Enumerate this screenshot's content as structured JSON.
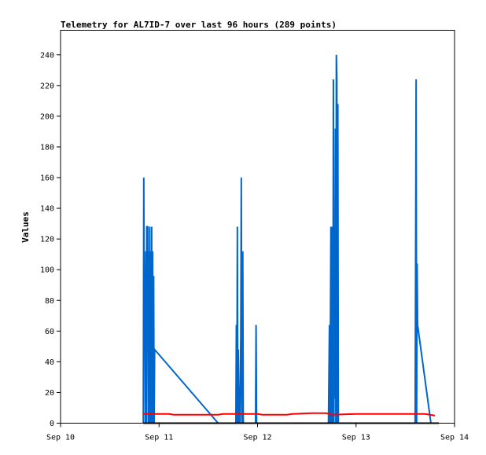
{
  "chart_data": {
    "type": "line",
    "title": "Telemetry for AL7ID-7 over last 96 hours (289 points)",
    "xlabel": "",
    "ylabel": "Values",
    "x_ticks": [
      "Sep 10",
      "Sep 11",
      "Sep 12",
      "Sep 13",
      "Sep 14"
    ],
    "x_range_days": [
      10,
      14
    ],
    "y_ticks": [
      0,
      20,
      40,
      60,
      80,
      100,
      120,
      140,
      160,
      180,
      200,
      220,
      240
    ],
    "ylim": [
      0,
      256
    ],
    "grid": false,
    "legend": "none",
    "series": [
      {
        "color": "#0066cc",
        "day_points": [
          [
            10.84,
            0
          ],
          [
            10.845,
            160
          ],
          [
            10.85,
            64
          ],
          [
            10.855,
            96
          ],
          [
            10.86,
            0
          ],
          [
            10.865,
            112
          ],
          [
            10.87,
            0
          ],
          [
            10.875,
            128
          ],
          [
            10.885,
            128
          ],
          [
            10.89,
            0
          ],
          [
            10.895,
            112
          ],
          [
            10.9,
            0
          ],
          [
            10.905,
            128
          ],
          [
            10.91,
            0
          ],
          [
            10.915,
            112
          ],
          [
            10.92,
            0
          ],
          [
            10.925,
            128
          ],
          [
            10.93,
            0
          ],
          [
            10.935,
            112
          ],
          [
            10.94,
            0
          ],
          [
            10.945,
            96
          ],
          [
            10.95,
            0
          ],
          [
            10.955,
            48
          ],
          [
            11.6,
            0
          ],
          [
            11.78,
            0
          ],
          [
            11.785,
            64
          ],
          [
            11.79,
            0
          ],
          [
            11.795,
            128
          ],
          [
            11.8,
            0
          ],
          [
            11.805,
            48
          ],
          [
            11.81,
            0
          ],
          [
            11.815,
            24
          ],
          [
            11.82,
            0
          ],
          [
            11.83,
            56
          ],
          [
            11.835,
            160
          ],
          [
            11.84,
            0
          ],
          [
            11.845,
            84
          ],
          [
            11.85,
            112
          ],
          [
            11.855,
            0
          ],
          [
            11.98,
            0
          ],
          [
            11.985,
            64
          ],
          [
            11.99,
            0
          ],
          [
            12.72,
            0
          ],
          [
            12.725,
            32
          ],
          [
            12.73,
            64
          ],
          [
            12.735,
            0
          ],
          [
            12.74,
            64
          ],
          [
            12.745,
            128
          ],
          [
            12.75,
            0
          ],
          [
            12.755,
            128
          ],
          [
            12.76,
            64
          ],
          [
            12.765,
            0
          ],
          [
            12.77,
            224
          ],
          [
            12.775,
            0
          ],
          [
            12.78,
            112
          ],
          [
            12.785,
            16
          ],
          [
            12.79,
            192
          ],
          [
            12.795,
            0
          ],
          [
            12.8,
            240
          ],
          [
            12.805,
            224
          ],
          [
            12.81,
            0
          ],
          [
            12.815,
            208
          ],
          [
            12.82,
            0
          ],
          [
            13.6,
            0
          ],
          [
            13.605,
            112
          ],
          [
            13.61,
            224
          ],
          [
            13.615,
            0
          ],
          [
            13.62,
            104
          ],
          [
            13.625,
            64
          ],
          [
            13.76,
            0
          ]
        ]
      },
      {
        "color": "#ff0000",
        "day_points": [
          [
            10.84,
            6
          ],
          [
            11.1,
            6
          ],
          [
            11.15,
            5.5
          ],
          [
            11.6,
            5.5
          ],
          [
            11.65,
            6
          ],
          [
            12.0,
            6
          ],
          [
            12.05,
            5.5
          ],
          [
            12.3,
            5.5
          ],
          [
            12.35,
            6
          ],
          [
            12.55,
            6.5
          ],
          [
            12.7,
            6.5
          ],
          [
            12.75,
            5.5
          ],
          [
            13.0,
            6
          ],
          [
            13.7,
            6
          ],
          [
            13.8,
            5
          ]
        ]
      },
      {
        "color": "#000000",
        "day_points": [
          [
            10.84,
            0
          ],
          [
            13.84,
            0
          ]
        ]
      }
    ]
  }
}
